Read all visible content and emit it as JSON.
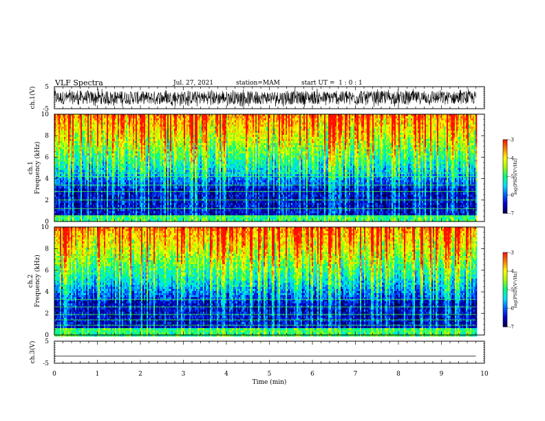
{
  "header": {
    "title": "VLF Spectra",
    "date": "Jul. 27, 2021",
    "station": "station=MAM",
    "start": "start UT =  1 : 0 : 1"
  },
  "chart_data": [
    {
      "type": "line",
      "ylabel": "ch.1(V)",
      "ylim": [
        -5,
        5
      ],
      "yticks": [
        "5",
        "-5"
      ],
      "xlim": [
        0,
        10
      ],
      "style": "dense black waveform (noise)",
      "series": [
        {
          "values_summary": "noise oscillating roughly between -4 and 4 V across 0-9.8 min"
        }
      ]
    },
    {
      "type": "heatmap",
      "ylabel": "ch.1\nFrequency (kHz)",
      "ylim": [
        0,
        10
      ],
      "yticks": [
        "0",
        "2",
        "4",
        "6",
        "8",
        "10"
      ],
      "xlim": [
        0,
        9.8
      ],
      "colorbar": {
        "label": "log(PSD)(V²/Hz)",
        "range": [
          -7,
          -3
        ],
        "ticks": [
          "-3",
          "-4",
          "-5",
          "-6",
          "-7"
        ]
      },
      "description_values": {
        "low_freq_0_3kHz": -6.5,
        "mid_4_6kHz": -5,
        "high_8_10kHz": -3.5
      },
      "horizontal_lines_kHz": [
        0.5,
        1.2,
        2.0,
        2.8,
        3.4,
        4.2,
        4.5
      ]
    },
    {
      "type": "heatmap",
      "ylabel": "ch.2\nFrequency (kHz)",
      "ylim": [
        0,
        10
      ],
      "yticks": [
        "0",
        "2",
        "4",
        "6",
        "8",
        "10"
      ],
      "xlim": [
        0,
        9.8
      ],
      "colorbar": {
        "label": "log(PSD)(V²/Hz)",
        "range": [
          -7,
          -3
        ],
        "ticks": [
          "-3",
          "-4",
          "-5",
          "-6",
          "-7"
        ]
      },
      "description_values": {
        "low_freq_0_3kHz": -6.5,
        "mid_4_6kHz": -5,
        "high_8_10kHz": -3.5
      },
      "horizontal_lines_kHz": [
        0.4,
        0.9,
        1.4,
        1.9,
        2.6,
        3.3
      ]
    },
    {
      "type": "line",
      "ylabel": "ch.3(V)",
      "ylim": [
        -5,
        5
      ],
      "yticks": [
        "5",
        "-5"
      ],
      "xlim": [
        0,
        10
      ],
      "series": [
        {
          "values_summary": "flat line at about -1.8 V"
        }
      ]
    }
  ],
  "xaxis": {
    "label": "Time (min)",
    "ticks": [
      "0",
      "1",
      "2",
      "3",
      "4",
      "5",
      "6",
      "7",
      "8",
      "9",
      "10"
    ]
  },
  "colors": {
    "colormap": [
      "#00004a",
      "#0000c8",
      "#0060ff",
      "#00e0ff",
      "#00ff80",
      "#a0ff00",
      "#ffff00",
      "#ff8000",
      "#ff1000"
    ]
  }
}
